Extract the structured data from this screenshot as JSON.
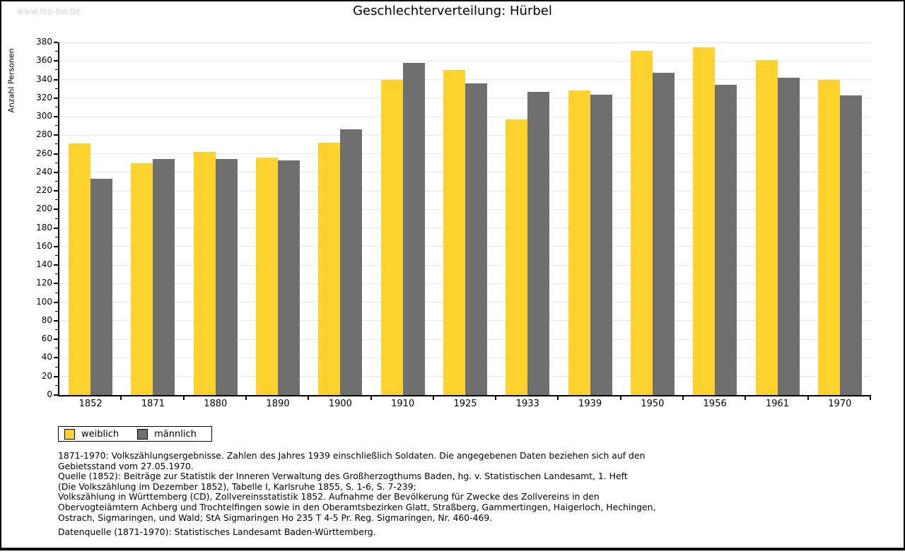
{
  "watermark": "www.leo-bw.de",
  "chart_data": {
    "type": "bar",
    "title": "Geschlechterverteilung: Hürbel",
    "xlabel": "",
    "ylabel": "Anzahl Personen",
    "categories": [
      "1852",
      "1871",
      "1880",
      "1890",
      "1900",
      "1910",
      "1925",
      "1933",
      "1939",
      "1950",
      "1956",
      "1961",
      "1970"
    ],
    "series": [
      {
        "name": "weiblich",
        "color": "#fcd32e",
        "values": [
          271,
          250,
          262,
          256,
          272,
          340,
          350,
          297,
          328,
          371,
          375,
          361,
          340
        ]
      },
      {
        "name": "männlich",
        "color": "#6f6f6f",
        "values": [
          233,
          254,
          254,
          253,
          286,
          358,
          336,
          327,
          324,
          347,
          334,
          342,
          323
        ]
      }
    ],
    "ylim": [
      0,
      380
    ],
    "ytick_label_step": 20,
    "ytick_minor_step": 10,
    "grid": true,
    "gridline_color": "#e8e8e8",
    "legend_position": "bottom-left"
  },
  "footer": {
    "source_text": "1871-1970: Volkszählungsergebnisse. Zahlen des Jahres 1939 einschließlich Soldaten. Die angegebenen Daten beziehen sich auf den\nGebietsstand vom 27.05.1970.\nQuelle (1852): Beiträge zur Statistik der Inneren Verwaltung des Großherzogthums Baden, hg. v. Statistischen Landesamt, 1. Heft\n(Die Volkszählung im Dezember 1852), Tabelle I, Karlsruhe 1855, S. 1-6, S. 7-239;\nVolkszählung in Württemberg (CD), Zollvereinsstatistik 1852. Aufnahme der Bevölkerung für Zwecke des Zollvereins in den\nObervogteiämtern Achberg und Trochtelfingen sowie in den Oberamtsbezirken Glatt, Straßberg, Gammertingen, Haigerloch, Hechingen,\nOstrach, Sigmaringen, und Wald; StA Sigmaringen Ho 235 T 4-5 Pr. Reg. Sigmaringen, Nr. 460-469.",
    "data_source_text": "Datenquelle (1871-1970): Statistisches Landesamt Baden-Württemberg."
  }
}
